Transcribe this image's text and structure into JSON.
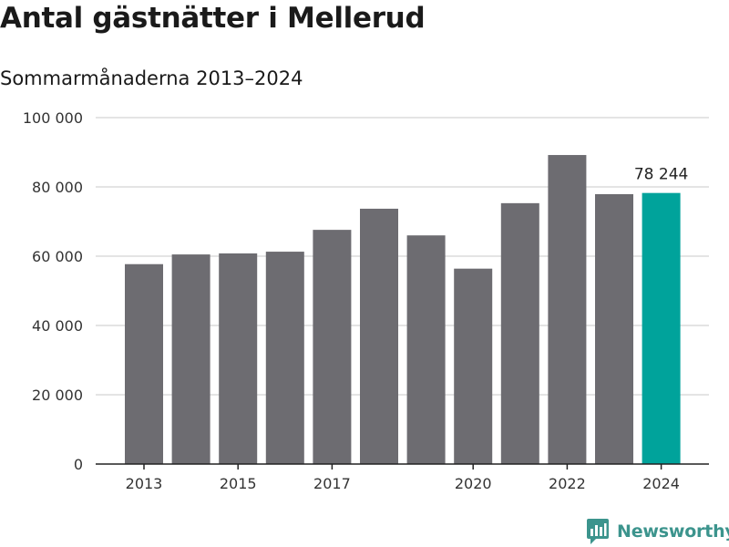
{
  "title": "Antal gästnätter i Mellerud",
  "subtitle": "Sommarmånaderna 2013–2024",
  "brand": {
    "name": "Newsworthy",
    "icon": "newsworthy-logo-icon"
  },
  "colors": {
    "bar": "#6d6c71",
    "highlight": "#00a39b",
    "grid": "#dcdcdc",
    "axis": "#222222",
    "brand": "#3c948d"
  },
  "chart_data": {
    "type": "bar",
    "categories": [
      "2013",
      "2014",
      "2015",
      "2016",
      "2017",
      "2018",
      "2019",
      "2020",
      "2021",
      "2022",
      "2023",
      "2024"
    ],
    "values": [
      57700,
      60500,
      60800,
      61300,
      67600,
      73700,
      66000,
      56400,
      75300,
      89200,
      77900,
      78244
    ],
    "highlight_index": 11,
    "x_tick_labels": [
      "2013",
      "2015",
      "2017",
      "2020",
      "2022",
      "2024"
    ],
    "y_tick_values": [
      0,
      20000,
      40000,
      60000,
      80000,
      100000
    ],
    "y_tick_labels": [
      "0",
      "20 000",
      "40 000",
      "60 000",
      "80 000",
      "100 000"
    ],
    "ylim": [
      0,
      100000
    ],
    "grid": true,
    "annotations": [
      {
        "category": "2024",
        "text": "78 244"
      }
    ]
  }
}
